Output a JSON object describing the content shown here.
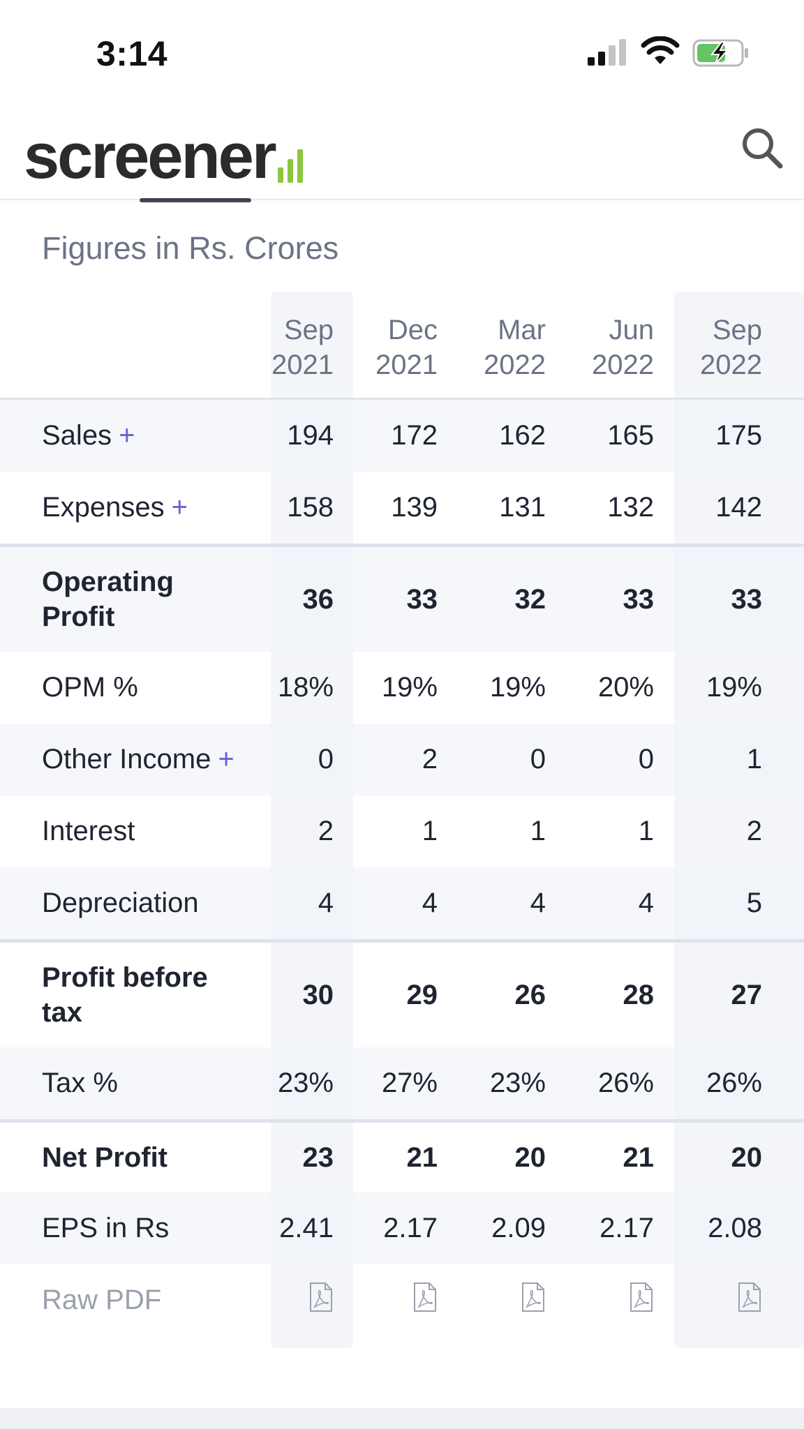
{
  "status_bar": {
    "time": "3:14"
  },
  "header": {
    "logo_text": "screener",
    "logo_accent_color": "#8cc63f"
  },
  "section": {
    "subtitle": "Figures in Rs. Crores"
  },
  "table": {
    "columns": [
      {
        "month": "Sep",
        "year": "2021"
      },
      {
        "month": "Dec",
        "year": "2021"
      },
      {
        "month": "Mar",
        "year": "2022"
      },
      {
        "month": "Jun",
        "year": "2022"
      },
      {
        "month": "Sep",
        "year": "2022"
      }
    ],
    "rows": [
      {
        "label": "Sales",
        "expandable": "+",
        "values": [
          "194",
          "172",
          "162",
          "165",
          "175"
        ]
      },
      {
        "label": "Expenses",
        "expandable": "+",
        "values": [
          "158",
          "139",
          "131",
          "132",
          "142"
        ]
      },
      {
        "label": "Operating Profit",
        "values": [
          "36",
          "33",
          "32",
          "33",
          "33"
        ]
      },
      {
        "label": "OPM %",
        "values": [
          "18%",
          "19%",
          "19%",
          "20%",
          "19%"
        ]
      },
      {
        "label": "Other Income",
        "expandable": "+",
        "values": [
          "0",
          "2",
          "0",
          "0",
          "1"
        ]
      },
      {
        "label": "Interest",
        "values": [
          "2",
          "1",
          "1",
          "1",
          "2"
        ]
      },
      {
        "label": "Depreciation",
        "values": [
          "4",
          "4",
          "4",
          "4",
          "5"
        ]
      },
      {
        "label": "Profit before tax",
        "values": [
          "30",
          "29",
          "26",
          "28",
          "27"
        ]
      },
      {
        "label": "Tax %",
        "values": [
          "23%",
          "27%",
          "23%",
          "26%",
          "26%"
        ]
      },
      {
        "label": "Net Profit",
        "values": [
          "23",
          "21",
          "20",
          "21",
          "20"
        ]
      },
      {
        "label": "EPS in Rs",
        "values": [
          "2.41",
          "2.17",
          "2.09",
          "2.17",
          "2.08"
        ]
      },
      {
        "label": "Raw PDF"
      }
    ]
  }
}
